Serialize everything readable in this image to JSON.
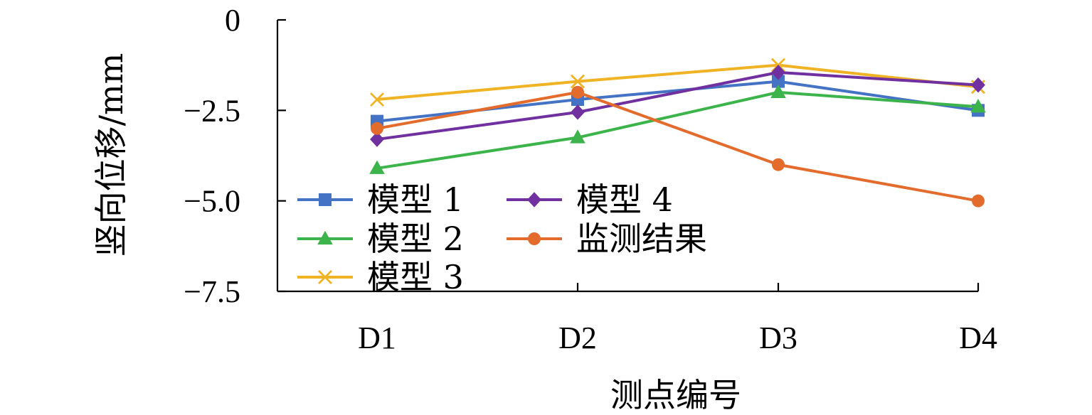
{
  "chart_data": {
    "type": "line",
    "title": "",
    "xlabel": "测点编号",
    "ylabel": "竖向位移/mm",
    "categories": [
      "D1",
      "D2",
      "D3",
      "D4"
    ],
    "ylim": [
      -7.5,
      0
    ],
    "yticks": [
      0,
      -2.5,
      -5.0,
      -7.5
    ],
    "ytick_labels": [
      "0",
      "−2.5",
      "−5.0",
      "−7.5"
    ],
    "grid": false,
    "legend_position": "center-left",
    "series": [
      {
        "name": "模型 1",
        "color": "#4472C4",
        "marker": "square",
        "values": [
          -2.8,
          -2.2,
          -1.7,
          -2.5
        ]
      },
      {
        "name": "模型 2",
        "color": "#3CB44B",
        "marker": "triangle",
        "values": [
          -4.1,
          -3.25,
          -2.0,
          -2.4
        ]
      },
      {
        "name": "模型 3",
        "color": "#F0B323",
        "marker": "x",
        "values": [
          -2.2,
          -1.7,
          -1.25,
          -1.85
        ]
      },
      {
        "name": "模型 4",
        "color": "#7030A0",
        "marker": "diamond",
        "values": [
          -3.3,
          -2.55,
          -1.45,
          -1.8
        ]
      },
      {
        "name": "监测结果",
        "color": "#E36C2C",
        "marker": "circle",
        "values": [
          -3.0,
          -2.0,
          -4.0,
          -5.0
        ]
      }
    ]
  }
}
